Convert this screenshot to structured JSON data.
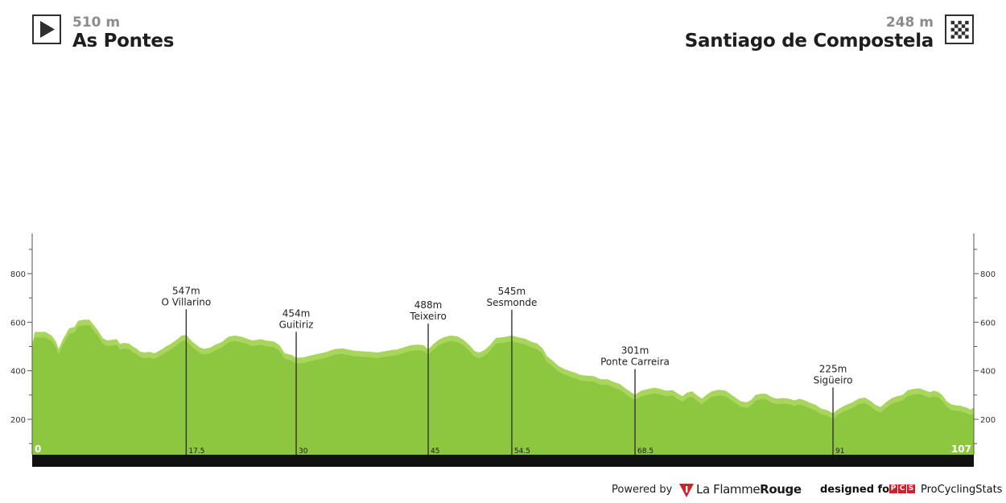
{
  "start": {
    "elevation": "510 m",
    "name": "As Pontes",
    "icon": "play-icon"
  },
  "finish": {
    "elevation": "248 m",
    "name": "Santiago de Compostela",
    "icon": "checkered-flag-icon"
  },
  "chart_data": {
    "type": "area",
    "title": "",
    "xlabel": "",
    "ylabel": "",
    "xlim": [
      0,
      107
    ],
    "ylim": [
      50,
      900
    ],
    "y_ticks": [
      200,
      400,
      600,
      800
    ],
    "x_start_label": "0",
    "x_end_label": "107",
    "grid": false,
    "colors": {
      "fill": "#8dc63f",
      "fill_light": "#a8d65c",
      "base_bar": "#111111",
      "marker_line": "#333333",
      "axis": "#555555"
    },
    "profile": [
      [
        0,
        510
      ],
      [
        0.3,
        560
      ],
      [
        1.5,
        560
      ],
      [
        2.2,
        545
      ],
      [
        2.7,
        520
      ],
      [
        3.0,
        490
      ],
      [
        3.5,
        530
      ],
      [
        4.2,
        575
      ],
      [
        4.8,
        580
      ],
      [
        5.2,
        605
      ],
      [
        5.8,
        610
      ],
      [
        6.5,
        610
      ],
      [
        7.4,
        570
      ],
      [
        8.0,
        535
      ],
      [
        8.5,
        525
      ],
      [
        9.6,
        530
      ],
      [
        10.0,
        510
      ],
      [
        10.4,
        515
      ],
      [
        11.0,
        512
      ],
      [
        11.4,
        500
      ],
      [
        11.8,
        493
      ],
      [
        12.3,
        478
      ],
      [
        12.8,
        475
      ],
      [
        13.3,
        478
      ],
      [
        13.9,
        472
      ],
      [
        14.3,
        480
      ],
      [
        14.8,
        490
      ],
      [
        15.2,
        500
      ],
      [
        15.8,
        512
      ],
      [
        16.3,
        525
      ],
      [
        17.0,
        545
      ],
      [
        17.5,
        547
      ],
      [
        18.2,
        520
      ],
      [
        19.0,
        497
      ],
      [
        19.5,
        490
      ],
      [
        20.2,
        495
      ],
      [
        20.8,
        507
      ],
      [
        21.5,
        518
      ],
      [
        22.3,
        540
      ],
      [
        23.0,
        545
      ],
      [
        23.8,
        540
      ],
      [
        24.4,
        532
      ],
      [
        25.0,
        525
      ],
      [
        26.0,
        530
      ],
      [
        26.5,
        525
      ],
      [
        27.5,
        520
      ],
      [
        28.1,
        505
      ],
      [
        28.7,
        472
      ],
      [
        29.5,
        465
      ],
      [
        30.0,
        454
      ],
      [
        30.8,
        455
      ],
      [
        31.5,
        462
      ],
      [
        32.5,
        470
      ],
      [
        33.5,
        478
      ],
      [
        34.0,
        485
      ],
      [
        34.5,
        490
      ],
      [
        35.3,
        492
      ],
      [
        36.0,
        487
      ],
      [
        36.5,
        483
      ],
      [
        37.5,
        480
      ],
      [
        38.5,
        478
      ],
      [
        39.2,
        475
      ],
      [
        40.0,
        480
      ],
      [
        40.8,
        485
      ],
      [
        41.5,
        488
      ],
      [
        42.3,
        497
      ],
      [
        43.0,
        505
      ],
      [
        43.8,
        508
      ],
      [
        44.5,
        505
      ],
      [
        45.0,
        488
      ],
      [
        45.6,
        510
      ],
      [
        46.2,
        528
      ],
      [
        46.8,
        538
      ],
      [
        47.5,
        545
      ],
      [
        48.3,
        542
      ],
      [
        49.0,
        528
      ],
      [
        49.7,
        505
      ],
      [
        50.3,
        480
      ],
      [
        50.8,
        475
      ],
      [
        51.4,
        485
      ],
      [
        52.0,
        505
      ],
      [
        52.7,
        535
      ],
      [
        53.5,
        538
      ],
      [
        54.5,
        545
      ],
      [
        55.2,
        538
      ],
      [
        56.0,
        532
      ],
      [
        56.7,
        520
      ],
      [
        57.4,
        512
      ],
      [
        58.0,
        492
      ],
      [
        58.5,
        460
      ],
      [
        59.2,
        440
      ],
      [
        59.8,
        420
      ],
      [
        60.3,
        410
      ],
      [
        61.0,
        400
      ],
      [
        61.6,
        393
      ],
      [
        62.3,
        383
      ],
      [
        63.0,
        380
      ],
      [
        63.8,
        378
      ],
      [
        64.6,
        365
      ],
      [
        65.4,
        365
      ],
      [
        66.0,
        355
      ],
      [
        66.8,
        345
      ],
      [
        67.5,
        325
      ],
      [
        68.5,
        301
      ],
      [
        69.2,
        318
      ],
      [
        70.0,
        325
      ],
      [
        70.7,
        330
      ],
      [
        71.4,
        325
      ],
      [
        72.0,
        318
      ],
      [
        72.8,
        320
      ],
      [
        73.4,
        305
      ],
      [
        73.9,
        295
      ],
      [
        74.4,
        310
      ],
      [
        75.0,
        315
      ],
      [
        75.5,
        300
      ],
      [
        76.1,
        285
      ],
      [
        76.6,
        300
      ],
      [
        77.2,
        315
      ],
      [
        78.0,
        322
      ],
      [
        78.8,
        318
      ],
      [
        79.3,
        305
      ],
      [
        79.9,
        290
      ],
      [
        80.5,
        275
      ],
      [
        81.2,
        270
      ],
      [
        81.7,
        280
      ],
      [
        82.2,
        300
      ],
      [
        82.8,
        305
      ],
      [
        83.4,
        305
      ],
      [
        84.0,
        292
      ],
      [
        84.6,
        285
      ],
      [
        85.3,
        288
      ],
      [
        86.0,
        285
      ],
      [
        86.6,
        278
      ],
      [
        87.2,
        285
      ],
      [
        87.8,
        278
      ],
      [
        88.4,
        268
      ],
      [
        89.0,
        260
      ],
      [
        89.6,
        245
      ],
      [
        90.3,
        238
      ],
      [
        91.0,
        225
      ],
      [
        91.6,
        242
      ],
      [
        92.4,
        258
      ],
      [
        93.2,
        270
      ],
      [
        93.9,
        285
      ],
      [
        94.6,
        290
      ],
      [
        95.3,
        275
      ],
      [
        95.8,
        260
      ],
      [
        96.4,
        250
      ],
      [
        97.0,
        270
      ],
      [
        97.7,
        288
      ],
      [
        98.3,
        295
      ],
      [
        98.9,
        300
      ],
      [
        99.5,
        320
      ],
      [
        100.2,
        325
      ],
      [
        100.8,
        328
      ],
      [
        101.4,
        320
      ],
      [
        102.0,
        312
      ],
      [
        102.5,
        318
      ],
      [
        103.0,
        312
      ],
      [
        103.4,
        300
      ],
      [
        103.9,
        275
      ],
      [
        104.4,
        262
      ],
      [
        104.9,
        258
      ],
      [
        105.5,
        256
      ],
      [
        106.2,
        248
      ],
      [
        106.6,
        240
      ],
      [
        107.0,
        248
      ]
    ],
    "waypoints": [
      {
        "km": 17.5,
        "km_label": "17.5",
        "elevation_label": "547m",
        "name": "O Villarino"
      },
      {
        "km": 30,
        "km_label": "30",
        "elevation_label": "454m",
        "name": "Guitiriz"
      },
      {
        "km": 45,
        "km_label": "45",
        "elevation_label": "488m",
        "name": "Teixeiro"
      },
      {
        "km": 54.5,
        "km_label": "54.5",
        "elevation_label": "545m",
        "name": "Sesmonde"
      },
      {
        "km": 68.5,
        "km_label": "68.5",
        "elevation_label": "301m",
        "name": "Ponte Carreira"
      },
      {
        "km": 91,
        "km_label": "91",
        "elevation_label": "225m",
        "name": "Sigüeiro"
      }
    ]
  },
  "footer": {
    "powered_by": "Powered by",
    "flamme_light": "La Flamme",
    "flamme_bold": "Rouge",
    "designed_for": "designed for",
    "pcs_letters": [
      "P",
      "C",
      "S"
    ],
    "pcs_name": "ProCyclingStats"
  }
}
